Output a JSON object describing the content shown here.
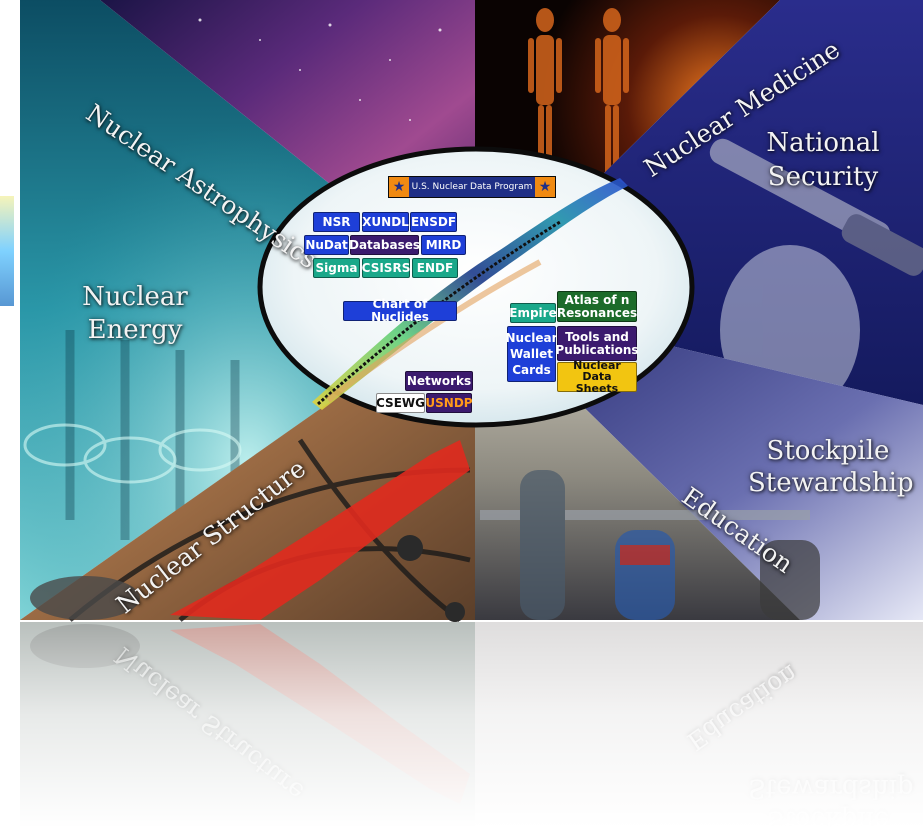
{
  "sectors": {
    "astrophysics": "Nuclear Astrophysics",
    "medicine": "Nuclear Medicine",
    "security_line1": "National",
    "security_line2": "Security",
    "energy_line1": "Nuclear",
    "energy_line2": "Energy",
    "stockpile_line1": "Stockpile",
    "stockpile_line2": "Stewardship",
    "structure": "Nuclear Structure",
    "education": "Education"
  },
  "banner": {
    "title": "U.S. Nuclear Data Program",
    "star_icon": "star-icon"
  },
  "chips": {
    "nsr": "NSR",
    "xundl": "XUNDL",
    "ensdf": "ENSDF",
    "nudat": "NuDat",
    "databases": "Databases",
    "mird": "MIRD",
    "sigma": "Sigma",
    "csisrs": "CSISRS",
    "endf": "ENDF",
    "chart_of_nuclides": "Chart of Nuclides",
    "empire": "Empire",
    "atlas_line1": "Atlas of n",
    "atlas_line2": "Resonances",
    "wallet_line1": "Nuclear",
    "wallet_line2": "Wallet",
    "wallet_line3": "Cards",
    "tools_line1": "Tools and",
    "tools_line2": "Publications",
    "nds_line1": "Nuclear Data",
    "nds_line2": "Sheets",
    "networks": "Networks",
    "csewg": "CSEWG",
    "usndp": "USNDP"
  },
  "colors": {
    "blue_chip": "#1e3fd8",
    "teal_chip": "#1aa88a",
    "green_chip": "#1c6b2a",
    "purple_chip": "#3b1a6e",
    "yellow_chip": "#f2c511",
    "orange_text": "#ff9a1a",
    "banner_bg": "#1f2f86",
    "star": "#f08a12"
  }
}
